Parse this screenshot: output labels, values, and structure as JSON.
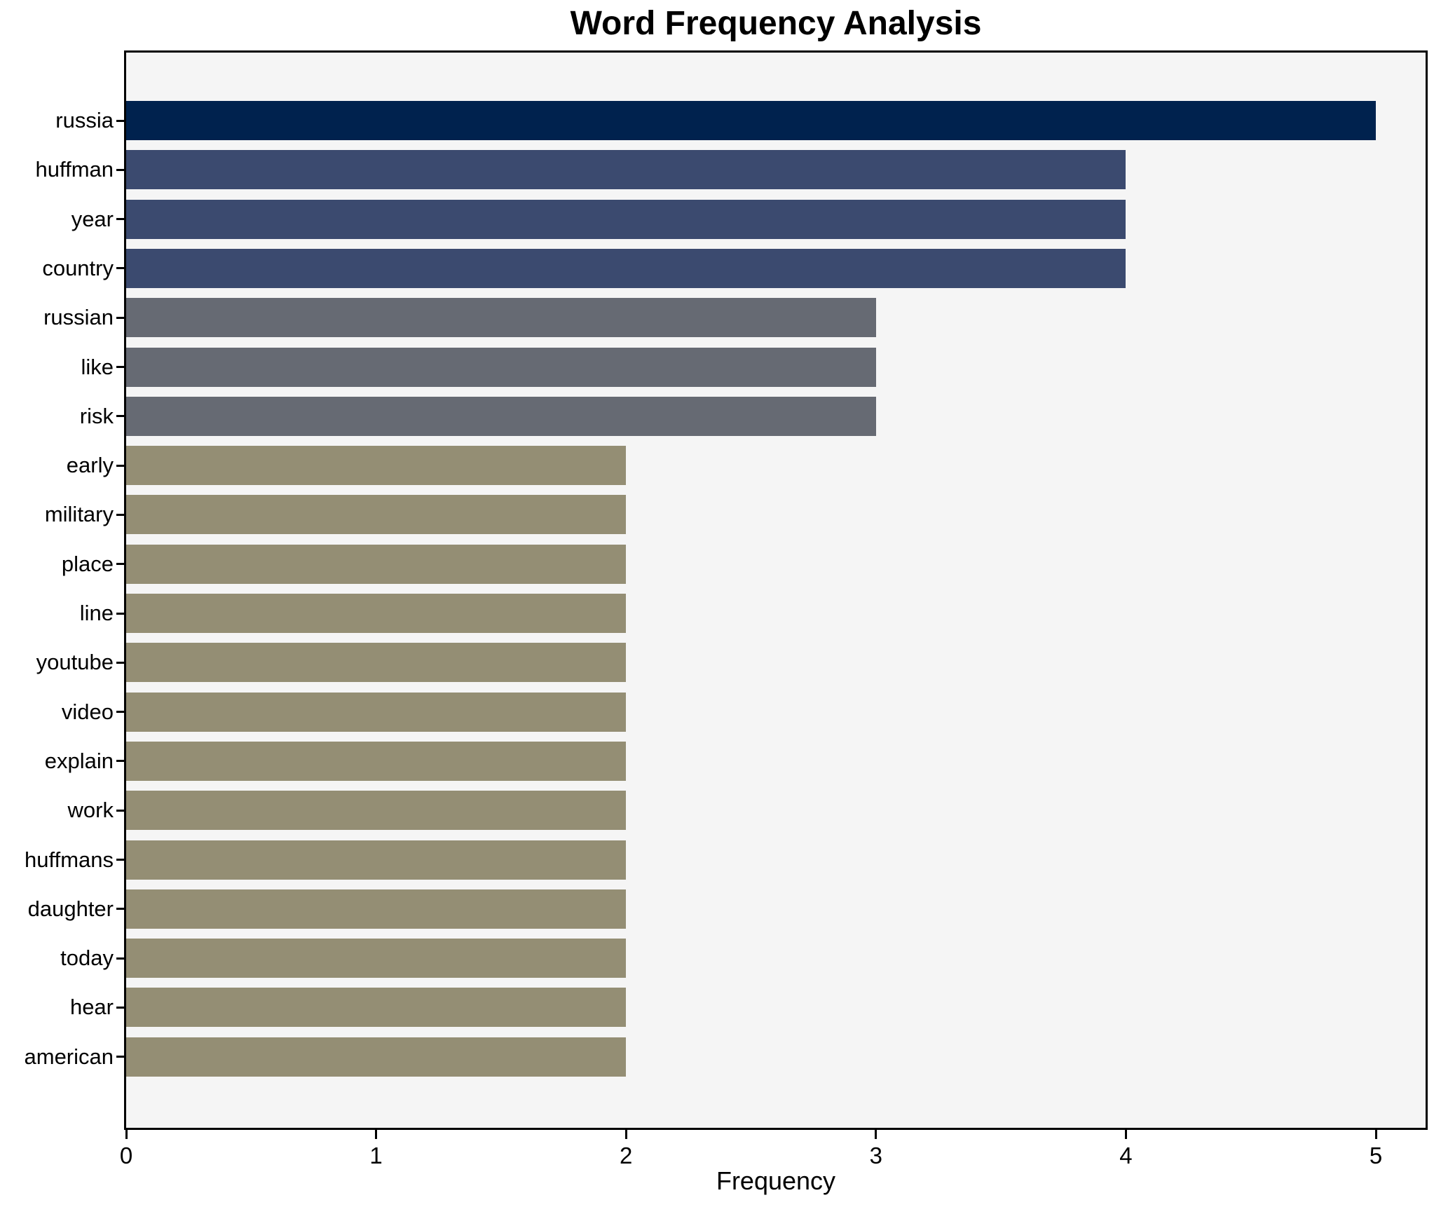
{
  "chart_data": {
    "type": "bar",
    "orientation": "horizontal",
    "title": "Word Frequency Analysis",
    "xlabel": "Frequency",
    "ylabel": "",
    "categories": [
      "russia",
      "huffman",
      "year",
      "country",
      "russian",
      "like",
      "risk",
      "early",
      "military",
      "place",
      "line",
      "youtube",
      "video",
      "explain",
      "work",
      "huffmans",
      "daughter",
      "today",
      "hear",
      "american"
    ],
    "values": [
      5,
      4,
      4,
      4,
      3,
      3,
      3,
      2,
      2,
      2,
      2,
      2,
      2,
      2,
      2,
      2,
      2,
      2,
      2,
      2
    ],
    "bar_colors": [
      "#00224e",
      "#3b4a6f",
      "#3b4a6f",
      "#3b4a6f",
      "#666a73",
      "#666a73",
      "#666a73",
      "#948e74",
      "#948e74",
      "#948e74",
      "#948e74",
      "#948e74",
      "#948e74",
      "#948e74",
      "#948e74",
      "#948e74",
      "#948e74",
      "#948e74",
      "#948e74",
      "#948e74"
    ],
    "xticks": [
      0,
      1,
      2,
      3,
      4,
      5
    ],
    "xlim": [
      0,
      5.2
    ],
    "grid": false,
    "legend": null,
    "plot_background": "#f5f5f5",
    "figure_background": "#ffffff",
    "spine_color": "#000000"
  }
}
